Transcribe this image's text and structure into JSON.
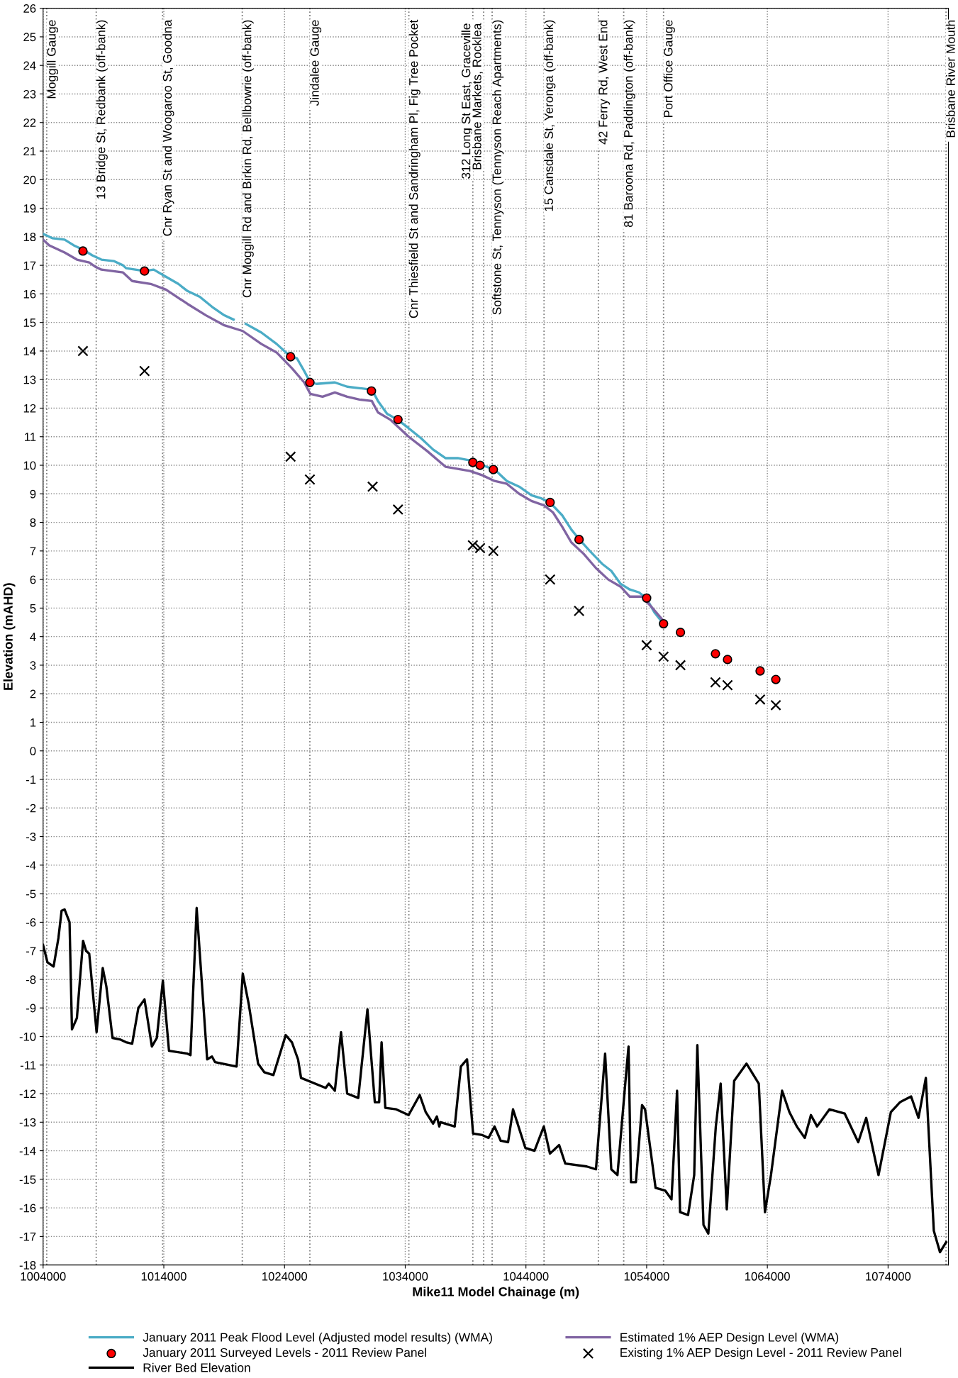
{
  "chart_data": {
    "type": "line",
    "xlabel": "Mike11 Model Chainage (m)",
    "ylabel": "Elevation (mAHD)",
    "xlim": [
      1004000,
      1079000
    ],
    "xticks": [
      1004000,
      1014000,
      1024000,
      1034000,
      1044000,
      1054000,
      1064000,
      1074000
    ],
    "ylim": [
      -18,
      26
    ],
    "yticks": [
      -18,
      -17,
      -16,
      -15,
      -14,
      -13,
      -12,
      -11,
      -10,
      -9,
      -8,
      -7,
      -6,
      -5,
      -4,
      -3,
      -2,
      -1,
      0,
      1,
      2,
      3,
      4,
      5,
      6,
      7,
      8,
      9,
      10,
      11,
      12,
      13,
      14,
      15,
      16,
      17,
      18,
      19,
      20,
      21,
      22,
      23,
      24,
      25,
      26
    ],
    "grid": true,
    "legend": "bottom",
    "series": [
      {
        "name": "January 2011 Peak Flood Level (Adjusted model results) (WMA)",
        "color": "#4bacc6",
        "marker": "none",
        "line_style": "solid",
        "x": [
          1004000,
          1004760,
          1005780,
          1006540,
          1007310,
          1008070,
          1008830,
          1009850,
          1010620,
          1010870,
          1012400,
          1013160,
          1014180,
          1015200,
          1015960,
          1016980,
          1017990,
          1019010,
          1019780,
          1020300,
          1020790,
          1022070,
          1023340,
          1024510,
          1025020,
          1025630,
          1026140,
          1026650,
          1028170,
          1029190,
          1030210,
          1031230,
          1031740,
          1032500,
          1033360,
          1034280,
          1035300,
          1036310,
          1037330,
          1038350,
          1039570,
          1040390,
          1041400,
          1042420,
          1043440,
          1044460,
          1045220,
          1045980,
          1047000,
          1047760,
          1048430,
          1049290,
          1050310,
          1051070,
          1051840,
          1052600,
          1053360,
          1053970,
          1054640,
          1055400
        ],
        "values": [
          18.1,
          17.95,
          17.9,
          17.7,
          17.55,
          17.35,
          17.2,
          17.15,
          17.0,
          16.9,
          16.8,
          16.85,
          16.6,
          16.35,
          16.1,
          15.9,
          15.55,
          15.25,
          15.1,
          null,
          14.95,
          14.65,
          14.25,
          13.8,
          13.75,
          13.3,
          12.9,
          12.85,
          12.9,
          12.75,
          12.7,
          12.65,
          12.25,
          11.8,
          11.6,
          11.3,
          10.95,
          10.55,
          10.25,
          10.25,
          10.15,
          10.0,
          9.85,
          9.45,
          9.25,
          8.95,
          8.85,
          8.7,
          8.25,
          7.75,
          7.4,
          7.0,
          6.55,
          6.3,
          5.85,
          5.65,
          5.55,
          5.35,
          4.85,
          4.45
        ]
      },
      {
        "name": "Estimated 1% AEP Design Level (WMA)",
        "color": "#8064a2",
        "marker": "none",
        "line_style": "solid",
        "x": [
          1004000,
          1004510,
          1005780,
          1006800,
          1007820,
          1008330,
          1008830,
          1010620,
          1011380,
          1012910,
          1014180,
          1015960,
          1017490,
          1019010,
          1020540,
          1022070,
          1023340,
          1024610,
          1025630,
          1026140,
          1027150,
          1028170,
          1029190,
          1030210,
          1031230,
          1031740,
          1032750,
          1034280,
          1035810,
          1037330,
          1039370,
          1040390,
          1041400,
          1042420,
          1043440,
          1044460,
          1045480,
          1046240,
          1047000,
          1047760,
          1048780,
          1049800,
          1050820,
          1051840,
          1052600,
          1053620,
          1054380,
          1055400
        ],
        "values": [
          17.9,
          17.7,
          17.45,
          17.2,
          17.1,
          16.95,
          16.85,
          16.75,
          16.45,
          16.35,
          16.15,
          15.65,
          15.25,
          14.9,
          14.7,
          14.25,
          13.95,
          13.4,
          12.9,
          12.5,
          12.4,
          12.55,
          12.4,
          12.3,
          12.25,
          11.85,
          11.6,
          11.0,
          10.5,
          9.95,
          9.8,
          9.65,
          9.45,
          9.35,
          9.0,
          8.75,
          8.6,
          8.35,
          7.85,
          7.3,
          6.9,
          6.4,
          6.0,
          5.75,
          5.4,
          5.4,
          5.05,
          4.55
        ]
      },
      {
        "name": "January 2011 Surveyed Levels - 2011 Review Panel",
        "type": "scatter",
        "color": "#ff0000",
        "marker": "circle",
        "x": [
          1007300,
          1012400,
          1024500,
          1026100,
          1031200,
          1033400,
          1039600,
          1040200,
          1041300,
          1046000,
          1048400,
          1054000,
          1055400,
          1056800,
          1059700,
          1060700,
          1063400,
          1064700
        ],
        "values": [
          17.5,
          16.8,
          13.8,
          12.9,
          12.6,
          11.6,
          10.1,
          10.0,
          9.85,
          8.7,
          7.4,
          5.35,
          4.45,
          4.15,
          3.4,
          3.2,
          2.8,
          2.5
        ]
      },
      {
        "name": "Existing 1% AEP Design Level - 2011 Review Panel",
        "type": "scatter",
        "color": "#000000",
        "marker": "cross",
        "x": [
          1007300,
          1012400,
          1024500,
          1026100,
          1031300,
          1033400,
          1039600,
          1040200,
          1041300,
          1046000,
          1048400,
          1054000,
          1055400,
          1056800,
          1059700,
          1060700,
          1063400,
          1064700
        ],
        "values": [
          14.0,
          13.3,
          10.3,
          9.5,
          9.25,
          8.45,
          7.2,
          7.1,
          7.0,
          6.0,
          4.9,
          3.7,
          3.3,
          3.0,
          2.4,
          2.3,
          1.8,
          1.6
        ]
      },
      {
        "name": "River Bed Elevation",
        "color": "#000000",
        "marker": "none",
        "line_style": "solid",
        "x": [
          1004000,
          1004360,
          1004870,
          1005270,
          1005530,
          1005780,
          1006190,
          1006390,
          1006800,
          1007310,
          1007560,
          1007820,
          1008430,
          1008940,
          1009240,
          1009750,
          1010360,
          1010870,
          1011380,
          1011890,
          1012400,
          1013010,
          1013420,
          1013920,
          1014430,
          1015960,
          1016210,
          1016720,
          1017590,
          1017990,
          1018250,
          1020030,
          1020540,
          1021050,
          1021810,
          1022320,
          1023080,
          1024100,
          1024610,
          1025120,
          1025370,
          1027410,
          1027660,
          1028170,
          1028680,
          1029190,
          1030110,
          1030870,
          1031480,
          1031840,
          1032040,
          1032350,
          1033260,
          1034280,
          1035200,
          1035700,
          1036310,
          1036620,
          1036820,
          1036930,
          1038100,
          1038610,
          1039120,
          1039620,
          1040390,
          1040900,
          1041400,
          1041910,
          1042520,
          1042930,
          1043950,
          1044710,
          1045480,
          1045990,
          1046750,
          1047260,
          1049040,
          1049800,
          1050560,
          1051070,
          1051580,
          1052350,
          1052500,
          1052700,
          1053110,
          1053620,
          1053870,
          1054740,
          1055550,
          1056060,
          1056520,
          1056770,
          1057430,
          1057940,
          1058200,
          1058710,
          1059110,
          1059730,
          1060130,
          1060640,
          1061250,
          1062270,
          1063290,
          1063800,
          1064300,
          1065220,
          1065830,
          1066440,
          1067100,
          1067610,
          1068120,
          1069140,
          1070410,
          1071530,
          1072190,
          1073210,
          1074230,
          1074990,
          1075910,
          1076520,
          1077130,
          1077790,
          1078300,
          1078810
        ],
        "values": [
          -6.8,
          -7.4,
          -7.55,
          -6.55,
          -5.6,
          -5.55,
          -6.0,
          -9.75,
          -9.35,
          -6.65,
          -7.0,
          -7.1,
          -9.85,
          -7.6,
          -8.25,
          -10.05,
          -10.1,
          -10.2,
          -10.25,
          -9.0,
          -8.7,
          -10.35,
          -10.05,
          -8.05,
          -10.5,
          -10.6,
          -10.65,
          -5.5,
          -10.8,
          -10.7,
          -10.9,
          -11.05,
          -7.8,
          -8.9,
          -10.95,
          -11.25,
          -11.35,
          -9.95,
          -10.2,
          -10.8,
          -11.45,
          -11.8,
          -11.65,
          -11.9,
          -9.85,
          -12.0,
          -12.15,
          -9.05,
          -12.3,
          -12.3,
          -10.2,
          -12.5,
          -12.55,
          -12.75,
          -12.05,
          -12.65,
          -13.05,
          -12.8,
          -13.15,
          -13.0,
          -13.15,
          -11.05,
          -10.8,
          -13.4,
          -13.45,
          -13.55,
          -13.15,
          -13.65,
          -13.7,
          -12.55,
          -13.9,
          -14.0,
          -13.15,
          -14.1,
          -13.8,
          -14.45,
          -14.55,
          -14.65,
          -10.6,
          -14.65,
          -14.85,
          -11.05,
          -10.35,
          -15.1,
          -15.1,
          -12.4,
          -12.55,
          -15.3,
          -15.4,
          -15.7,
          -11.9,
          -16.15,
          -16.25,
          -14.85,
          -10.3,
          -16.6,
          -16.9,
          -13.15,
          -11.65,
          -16.05,
          -11.55,
          -10.95,
          -11.65,
          -16.15,
          -14.85,
          -11.9,
          -12.65,
          -13.15,
          -13.55,
          -12.75,
          -13.15,
          -12.55,
          -12.7,
          -13.7,
          -12.85,
          -14.85,
          -12.65,
          -12.3,
          -12.1,
          -12.85,
          -11.45,
          -16.8,
          -17.55,
          -17.2
        ]
      }
    ],
    "ref_lines": [
      {
        "axis": "x",
        "value": 1004300,
        "label": "Moggill Gauge",
        "color": "#808080",
        "line_style": "dotted"
      },
      {
        "axis": "x",
        "value": 1008400,
        "label": "13 Bridge St, Redbank (off-bank)",
        "color": "#808080",
        "line_style": "dotted"
      },
      {
        "axis": "x",
        "value": 1013900,
        "label": "Cnr Ryan St and Woogaroo St, Goodna",
        "color": "#808080",
        "line_style": "dotted"
      },
      {
        "axis": "x",
        "value": 1020500,
        "label": "Cnr Moggill Rd and Birkin Rd, Bellbowrie (off-bank)",
        "color": "#808080",
        "line_style": "dotted"
      },
      {
        "axis": "x",
        "value": 1026100,
        "label": "Jindalee Gauge",
        "color": "#808080",
        "line_style": "dotted"
      },
      {
        "axis": "x",
        "value": 1034300,
        "label": "Cnr Thiesfield St and Sandringham Pl, Fig Tree Pocket",
        "color": "#808080",
        "line_style": "dotted"
      },
      {
        "axis": "x",
        "value": 1039600,
        "label": "312 Long St East, Graceville",
        "color": "#808080",
        "line_style": "dotted"
      },
      {
        "axis": "x",
        "value": 1040500,
        "label": "Brisbane Markets, Rocklea",
        "color": "#808080",
        "line_style": "dotted"
      },
      {
        "axis": "x",
        "value": 1041200,
        "label": "Softstone St, Tennyson (Tennyson Reach Apartments)",
        "color": "#808080",
        "line_style": "dotted"
      },
      {
        "axis": "x",
        "value": 1045500,
        "label": "15 Cansdale St, Yeronga (off-bank)",
        "color": "#808080",
        "line_style": "dotted"
      },
      {
        "axis": "x",
        "value": 1050000,
        "label": "42 Ferry Rd, West End",
        "color": "#808080",
        "line_style": "dotted"
      },
      {
        "axis": "x",
        "value": 1052100,
        "label": "81 Baroona Rd, Paddington (off-bank)",
        "color": "#808080",
        "line_style": "dotted"
      },
      {
        "axis": "x",
        "value": 1055400,
        "label": "Port Office Gauge",
        "color": "#808080",
        "line_style": "dotted"
      },
      {
        "axis": "x",
        "value": 1078800,
        "label": "Brisbane River Mouth",
        "color": "#808080",
        "line_style": "dotted"
      }
    ]
  }
}
